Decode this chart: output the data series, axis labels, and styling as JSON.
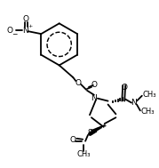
{
  "bg_color": "#ffffff",
  "bond_color": "#000000",
  "lw": 1.3,
  "fs": 6.5,
  "fig_width": 1.79,
  "fig_height": 1.89,
  "dpi": 100,
  "xlim": [
    0,
    179
  ],
  "ylim": [
    0,
    189
  ]
}
